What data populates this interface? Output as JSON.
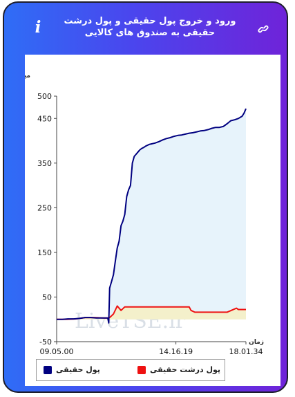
{
  "header": {
    "title": "ورود و خروج پول حقیقی و پول درشت حقیقی به صندوق های کالایی",
    "info_symbol": "i",
    "info_icon": "info-icon",
    "link_icon": "link-icon"
  },
  "watermark": "LiveTSE.ir",
  "legend": {
    "items": [
      {
        "label": "پول حقیقی",
        "color": "#000080"
      },
      {
        "label": "پول درشت حقیقی",
        "color": "#ee1111"
      }
    ]
  },
  "chart_data": {
    "type": "line",
    "ylabel": "میلیارد تومان",
    "xlabel": "زمان",
    "yticks": [
      500,
      450,
      350,
      250,
      150,
      50,
      -50
    ],
    "ylim": [
      -50,
      500
    ],
    "xtick_labels": [
      "09.05.00",
      "14.16.19",
      "18.01.34"
    ],
    "grid": false,
    "legend_position": "bottom",
    "series": [
      {
        "name": "پول حقیقی",
        "color": "#000080",
        "fill": "#e7f3fb",
        "x": [
          0,
          3,
          6,
          9,
          12,
          15,
          18,
          21,
          24,
          26,
          27,
          27.5,
          28,
          29,
          30,
          31,
          32,
          33,
          34,
          35,
          36,
          37,
          38,
          39,
          40,
          41,
          42,
          43,
          44,
          45,
          46,
          47,
          48,
          49,
          50,
          52,
          54,
          56,
          58,
          60,
          62,
          64,
          66,
          68,
          70,
          72,
          74,
          76,
          78,
          80,
          82,
          84,
          86,
          88,
          90,
          92,
          94,
          96,
          98,
          99,
          100
        ],
        "y": [
          0,
          0,
          1,
          1,
          2,
          4,
          4,
          3,
          3,
          3,
          3,
          -8,
          70,
          85,
          100,
          130,
          160,
          175,
          210,
          220,
          235,
          275,
          290,
          300,
          350,
          365,
          370,
          375,
          380,
          383,
          385,
          388,
          390,
          392,
          393,
          395,
          398,
          402,
          405,
          407,
          410,
          412,
          413,
          415,
          417,
          418,
          420,
          422,
          423,
          425,
          428,
          430,
          430,
          432,
          438,
          445,
          447,
          450,
          455,
          462,
          472
        ]
      },
      {
        "name": "پول درشت حقیقی",
        "color": "#ee1111",
        "fill": "#f4f0cb",
        "x": [
          0,
          5,
          10,
          15,
          20,
          25,
          27,
          28,
          30,
          32,
          34,
          36,
          40,
          45,
          50,
          55,
          60,
          65,
          70,
          71,
          73,
          75,
          80,
          85,
          90,
          95,
          96,
          100
        ],
        "y": [
          0,
          0,
          1,
          4,
          4,
          3,
          3,
          4,
          12,
          30,
          20,
          28,
          28,
          28,
          28,
          28,
          28,
          28,
          28,
          20,
          16,
          16,
          16,
          16,
          16,
          25,
          22,
          22
        ]
      }
    ]
  }
}
